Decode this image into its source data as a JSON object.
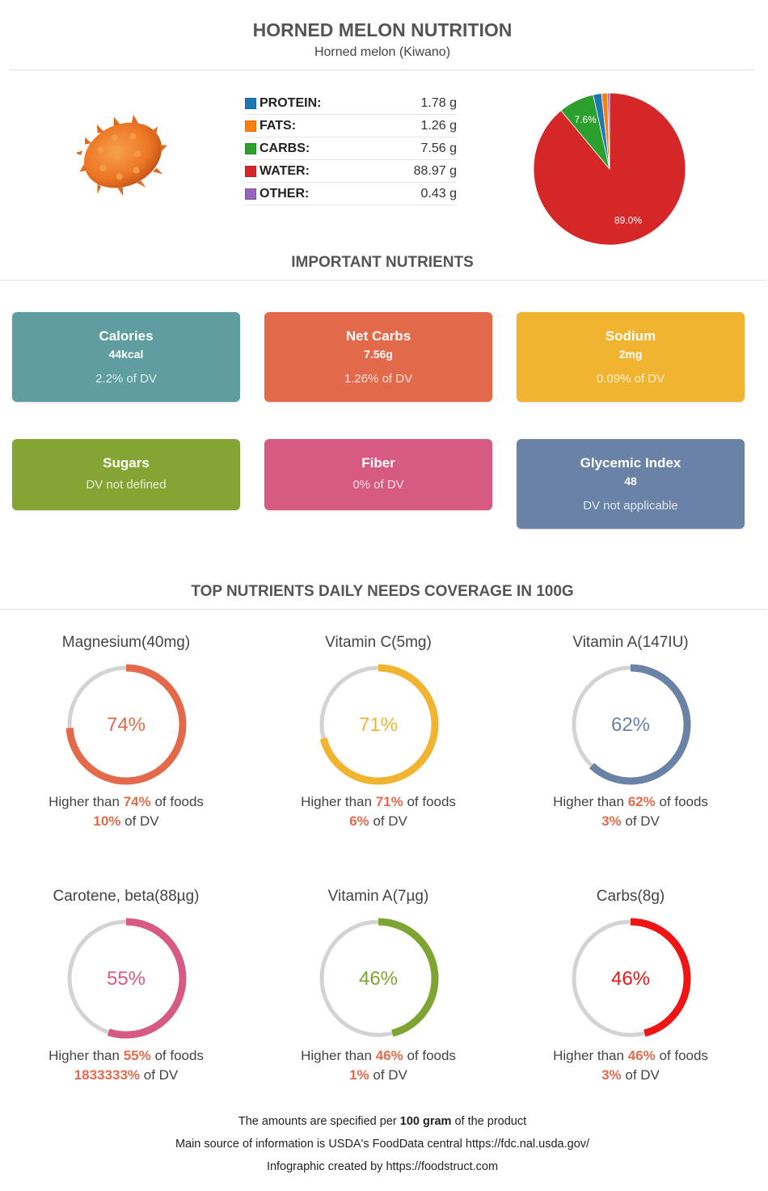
{
  "header": {
    "title": "HORNED MELON NUTRITION",
    "subtitle": "Horned melon (Kiwano)"
  },
  "image": {
    "icon": "horned-melon-fruit",
    "color": "#f07a28"
  },
  "macros": [
    {
      "label": "PROTEIN:",
      "value": "1.78 g",
      "color": "#1f77b4"
    },
    {
      "label": "FATS:",
      "value": "1.26 g",
      "color": "#ff7f0e"
    },
    {
      "label": "CARBS:",
      "value": "7.56 g",
      "color": "#2ca02c"
    },
    {
      "label": "WATER:",
      "value": "88.97 g",
      "color": "#d62728"
    },
    {
      "label": "OTHER:",
      "value": "0.43 g",
      "color": "#9467bd"
    }
  ],
  "sections": {
    "important": "IMPORTANT NUTRIENTS",
    "coverage": "TOP NUTRIENTS DAILY NEEDS COVERAGE IN 100G"
  },
  "cards": [
    {
      "title": "Calories",
      "value": "44kcal",
      "dv": "2.2% of DV",
      "color": "#5f9ea0"
    },
    {
      "title": "Net Carbs",
      "value": "7.56g",
      "dv": "1.26% of DV",
      "color": "#e26a4a"
    },
    {
      "title": "Sodium",
      "value": "2mg",
      "dv": "0.09% of DV",
      "color": "#f0b431"
    },
    {
      "title": "Sugars",
      "value": "",
      "dv": "DV not defined",
      "color": "#84a533"
    },
    {
      "title": "Fiber",
      "value": "",
      "dv": "0% of DV",
      "color": "#d65a82"
    },
    {
      "title": "Glycemic Index",
      "value": "48",
      "dv": "DV not applicable",
      "color": "#6a82a6"
    }
  ],
  "gauges": [
    {
      "name": "Magnesium(40mg)",
      "pct": "74%",
      "pct_value": 74,
      "higher_prefix": "Higher than ",
      "higher": "74%",
      "higher_suffix": " of foods",
      "dv": "10%",
      "dv_suffix": " of DV",
      "color": "#e26a4a"
    },
    {
      "name": "Vitamin C(5mg)",
      "pct": "71%",
      "pct_value": 71,
      "higher_prefix": "Higher than ",
      "higher": "71%",
      "higher_suffix": " of foods",
      "dv": "6%",
      "dv_suffix": " of DV",
      "color": "#f0b431"
    },
    {
      "name": "Vitamin A(147IU)",
      "pct": "62%",
      "pct_value": 62,
      "higher_prefix": "Higher than ",
      "higher": "62%",
      "higher_suffix": " of foods",
      "dv": "3%",
      "dv_suffix": " of DV",
      "color": "#6a82a6"
    },
    {
      "name": "Carotene, beta(88µg)",
      "pct": "55%",
      "pct_value": 55,
      "higher_prefix": "Higher than ",
      "higher": "55%",
      "higher_suffix": " of foods",
      "dv": "1833333%",
      "dv_suffix": " of DV",
      "color": "#d65a82"
    },
    {
      "name": "Vitamin A(7µg)",
      "pct": "46%",
      "pct_value": 46,
      "higher_prefix": "Higher than ",
      "higher": "46%",
      "higher_suffix": " of foods",
      "dv": "1%",
      "dv_suffix": " of DV",
      "color": "#7ea431"
    },
    {
      "name": "Carbs(8g)",
      "pct": "46%",
      "pct_value": 46,
      "higher_prefix": "Higher than ",
      "higher": "46%",
      "higher_suffix": " of foods",
      "dv": "3%",
      "dv_suffix": " of DV",
      "color": "#f01515"
    }
  ],
  "footer": {
    "line1_prefix": "The amounts are specified per ",
    "line1_bold": "100 gram",
    "line1_suffix": " of the product",
    "line2": "Main source of information is USDA's FoodData central https://fdc.nal.usda.gov/",
    "line3": "Infographic created by https://foodstruct.com"
  },
  "chart_data": [
    {
      "type": "pie",
      "title": "Macronutrient composition",
      "categories": [
        "Protein",
        "Fats",
        "Carbs",
        "Water",
        "Other"
      ],
      "values": [
        1.78,
        1.26,
        7.56,
        88.97,
        0.43
      ],
      "colors": [
        "#1f77b4",
        "#ff7f0e",
        "#2ca02c",
        "#d62728",
        "#9467bd"
      ],
      "labels": {
        "Carbs": "7.6%",
        "Water": "89.0%"
      }
    },
    {
      "type": "bar",
      "title": "Top nutrients daily needs coverage in 100g (percentile vs foods)",
      "categories": [
        "Magnesium(40mg)",
        "Vitamin C(5mg)",
        "Vitamin A(147IU)",
        "Carotene, beta(88µg)",
        "Vitamin A(7µg)",
        "Carbs(8g)"
      ],
      "values": [
        74,
        71,
        62,
        55,
        46,
        46
      ],
      "dv_percent": [
        "10%",
        "6%",
        "3%",
        "1833333%",
        "1%",
        "3%"
      ],
      "ylim": [
        0,
        100
      ]
    }
  ]
}
